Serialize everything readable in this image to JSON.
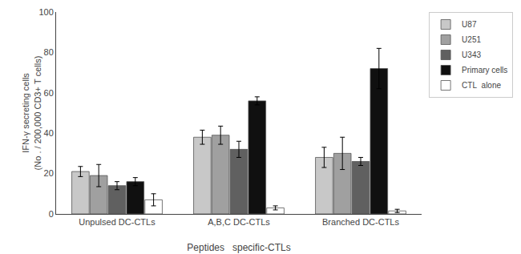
{
  "chart_data": {
    "type": "bar",
    "categories": [
      "Unpulsed DC-CTLs",
      "A,B,C DC-CTLs",
      "Branched DC-CTLs"
    ],
    "series": [
      {
        "name": "U87",
        "color": "#c8c8c8",
        "values": [
          21,
          38,
          28
        ],
        "errors": [
          2.5,
          3.5,
          5
        ]
      },
      {
        "name": "U251",
        "color": "#a0a0a0",
        "values": [
          19,
          39,
          30
        ],
        "errors": [
          5.5,
          4.5,
          8
        ]
      },
      {
        "name": "U343",
        "color": "#606060",
        "values": [
          14,
          32,
          26
        ],
        "errors": [
          2,
          4,
          2
        ]
      },
      {
        "name": "Primary cells",
        "color": "#101010",
        "values": [
          16,
          56,
          72
        ],
        "errors": [
          2,
          2,
          10
        ]
      },
      {
        "name": "CTL  alone",
        "color": "#ffffff",
        "values": [
          7,
          3,
          1.5
        ],
        "errors": [
          3,
          1,
          0.8
        ]
      }
    ],
    "xlabel": "Peptides   specific-CTLs",
    "ylabel": "IFN-γ secreting cells\n(No . / 200,000 CD3+ T cells)",
    "ylim": [
      0,
      100
    ],
    "yticks": [
      0,
      20,
      40,
      60,
      80,
      100
    ],
    "grid": false,
    "legend": "upper right"
  }
}
